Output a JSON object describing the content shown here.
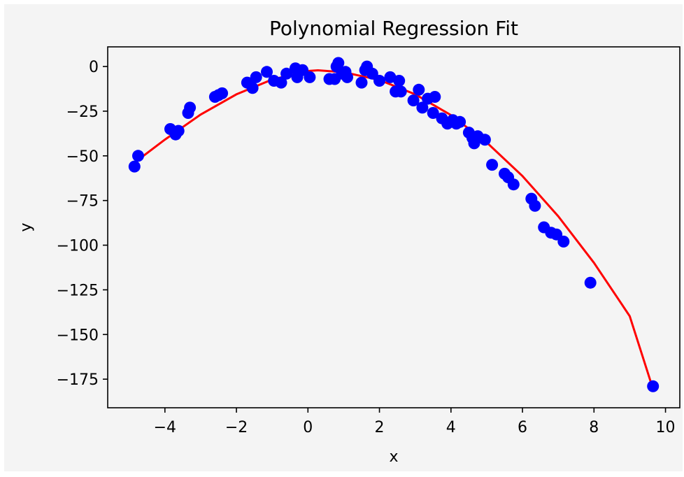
{
  "chart_data": {
    "type": "scatter",
    "title": "Polynomial Regression Fit",
    "xlabel": "x",
    "ylabel": "y",
    "xlim": [
      -5.6,
      10.4
    ],
    "ylim": [
      -191,
      11
    ],
    "xticks": [
      -4,
      -2,
      0,
      2,
      4,
      6,
      8,
      10
    ],
    "xtick_labels": [
      "−4",
      "−2",
      "0",
      "2",
      "4",
      "6",
      "8",
      "10"
    ],
    "yticks": [
      0,
      -25,
      -50,
      -75,
      -100,
      -125,
      -150,
      -175
    ],
    "ytick_labels": [
      "0",
      "−25",
      "−50",
      "−75",
      "−100",
      "−125",
      "−150",
      "−175"
    ],
    "grid": false,
    "legend": "none",
    "colors": {
      "points": "#0000ff",
      "fit_line": "#ff0000",
      "figure_bg": "#f4f4f4",
      "axes_bg": "#f4f4f4"
    },
    "points": {
      "x": [
        -4.85,
        -4.75,
        -3.85,
        -3.7,
        -3.62,
        -3.35,
        -3.3,
        -2.6,
        -2.5,
        -2.4,
        -1.7,
        -1.55,
        -1.45,
        -1.15,
        -0.95,
        -0.75,
        -0.6,
        -0.35,
        -0.3,
        -0.15,
        0.05,
        0.6,
        0.75,
        0.8,
        0.85,
        0.95,
        1.05,
        1.1,
        1.5,
        1.6,
        1.65,
        1.8,
        2.0,
        2.3,
        2.45,
        2.55,
        2.6,
        2.95,
        3.1,
        3.2,
        3.35,
        3.5,
        3.55,
        3.75,
        3.9,
        4.05,
        4.15,
        4.25,
        4.5,
        4.6,
        4.65,
        4.75,
        4.95,
        5.15,
        5.5,
        5.6,
        5.75,
        6.25,
        6.35,
        6.6,
        6.8,
        6.95,
        7.15,
        7.9,
        9.65
      ],
      "y": [
        -56,
        -50,
        -35,
        -38,
        -36,
        -26,
        -23,
        -17,
        -16,
        -15,
        -9,
        -12,
        -6,
        -3,
        -8,
        -9,
        -4,
        -1,
        -6,
        -2,
        -6,
        -7,
        -7,
        0,
        2,
        -4,
        -3,
        -6,
        -9,
        -2,
        0,
        -4,
        -8,
        -6,
        -14,
        -8,
        -14,
        -19,
        -13,
        -23,
        -18,
        -26,
        -17,
        -29,
        -32,
        -30,
        -32,
        -31,
        -37,
        -40,
        -43,
        -39,
        -41,
        -55,
        -60,
        -62,
        -66,
        -74,
        -78,
        -90,
        -93,
        -94,
        -98,
        -121,
        -179
      ],
      "labels": [
        "−4.85",
        "−4.75",
        "−3.85",
        "−3.70",
        "−3.62",
        "−3.35",
        "−3.30",
        "−2.60",
        "−2.50",
        "−2.40",
        "−1.70",
        "−1.55",
        "−1.45",
        "−1.15",
        "−0.95",
        "−0.75",
        "−0.60",
        "−0.35",
        "−0.30",
        "−0.15",
        "0.05",
        "0.60",
        "0.75",
        "0.80",
        "0.85",
        "0.95",
        "1.05",
        "1.10",
        "1.50",
        "1.60",
        "1.65",
        "1.80",
        "2.00",
        "2.30",
        "2.45",
        "2.55",
        "2.60",
        "2.95",
        "3.10",
        "3.20",
        "3.35",
        "3.50",
        "3.55",
        "3.75",
        "3.90",
        "4.05",
        "4.15",
        "4.25",
        "4.50",
        "4.60",
        "4.65",
        "4.75",
        "4.95",
        "5.15",
        "5.50",
        "5.60",
        "5.75",
        "6.25",
        "6.35",
        "6.60",
        "6.80",
        "6.95",
        "7.15",
        "7.90",
        "9.65"
      ]
    },
    "fit_line": {
      "x": [
        -4.85,
        -4.0,
        -3.0,
        -2.0,
        -1.0,
        0.0,
        0.28,
        1.0,
        2.0,
        3.0,
        4.0,
        5.0,
        6.0,
        7.0,
        8.0,
        9.0,
        9.65
      ],
      "y": [
        -53.8,
        -40.9,
        -26.9,
        -15.6,
        -7.3,
        -2.5,
        -2.1,
        -3.2,
        -7.5,
        -15.6,
        -27.2,
        -42.5,
        -61.3,
        -83.8,
        -109.9,
        -139.7,
        -180.5
      ]
    }
  }
}
